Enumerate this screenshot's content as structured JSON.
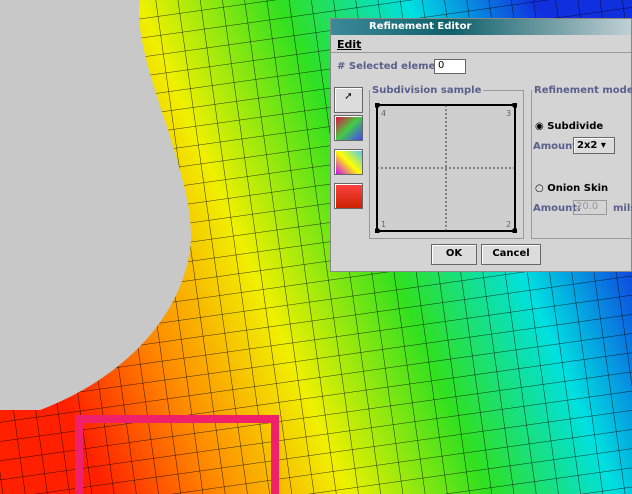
{
  "window": {
    "title": "Refinement Editor",
    "menu": "Edit"
  },
  "selection": {
    "label": "# Selected elements:",
    "value": "0"
  },
  "sample": {
    "title": "Subdivision sample",
    "corners": [
      "4",
      "3",
      "1",
      "2"
    ]
  },
  "mode": {
    "title": "Refinement mode",
    "subdivide": "Subdivide",
    "amount_label": "Amount:",
    "amount": "2x2",
    "onion": "Onion Skin",
    "onion_amount_label": "Amount:",
    "onion_amount": "20.0",
    "unit": "mils"
  },
  "buttons": {
    "ok": "OK",
    "cancel": "Cancel"
  }
}
